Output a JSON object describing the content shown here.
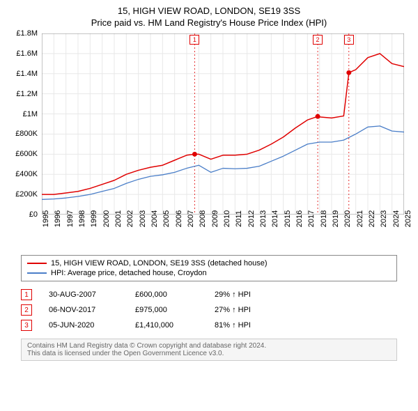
{
  "title": "15, HIGH VIEW ROAD, LONDON, SE19 3SS",
  "subtitle": "Price paid vs. HM Land Registry's House Price Index (HPI)",
  "chart": {
    "type": "line",
    "background_color": "#ffffff",
    "grid_color": "#e8e8e8",
    "axis_color": "#888888",
    "ylim": [
      0,
      1800000
    ],
    "ytick_step": 200000,
    "yticks": [
      "£0",
      "£200K",
      "£400K",
      "£600K",
      "£800K",
      "£1M",
      "£1.2M",
      "£1.4M",
      "£1.6M",
      "£1.8M"
    ],
    "xlim": [
      1995,
      2025
    ],
    "xticks": [
      "1995",
      "1996",
      "1997",
      "1998",
      "1999",
      "2000",
      "2001",
      "2002",
      "2003",
      "2004",
      "2005",
      "2006",
      "2007",
      "2008",
      "2009",
      "2010",
      "2011",
      "2012",
      "2013",
      "2014",
      "2015",
      "2016",
      "2017",
      "2018",
      "2019",
      "2020",
      "2021",
      "2022",
      "2023",
      "2024",
      "2025"
    ],
    "title_fontsize": 13,
    "label_fontsize": 11,
    "series": [
      {
        "name": "property",
        "label": "15, HIGH VIEW ROAD, LONDON, SE19 3SS (detached house)",
        "color": "#e00000",
        "line_width": 1.5,
        "data": [
          [
            1995,
            200000
          ],
          [
            1996,
            200000
          ],
          [
            1997,
            215000
          ],
          [
            1998,
            230000
          ],
          [
            1999,
            260000
          ],
          [
            2000,
            300000
          ],
          [
            2001,
            340000
          ],
          [
            2002,
            400000
          ],
          [
            2003,
            440000
          ],
          [
            2004,
            470000
          ],
          [
            2005,
            490000
          ],
          [
            2006,
            540000
          ],
          [
            2007,
            590000
          ],
          [
            2007.66,
            600000
          ],
          [
            2008,
            600000
          ],
          [
            2009,
            550000
          ],
          [
            2010,
            590000
          ],
          [
            2011,
            590000
          ],
          [
            2012,
            600000
          ],
          [
            2013,
            640000
          ],
          [
            2014,
            700000
          ],
          [
            2015,
            770000
          ],
          [
            2016,
            860000
          ],
          [
            2017,
            940000
          ],
          [
            2017.85,
            975000
          ],
          [
            2018,
            970000
          ],
          [
            2019,
            960000
          ],
          [
            2020,
            980000
          ],
          [
            2020.43,
            1410000
          ],
          [
            2021,
            1440000
          ],
          [
            2022,
            1560000
          ],
          [
            2023,
            1600000
          ],
          [
            2024,
            1500000
          ],
          [
            2025,
            1470000
          ]
        ]
      },
      {
        "name": "hpi",
        "label": "HPI: Average price, detached house, Croydon",
        "color": "#4a7ec8",
        "line_width": 1.3,
        "data": [
          [
            1995,
            150000
          ],
          [
            1996,
            155000
          ],
          [
            1997,
            165000
          ],
          [
            1998,
            180000
          ],
          [
            1999,
            200000
          ],
          [
            2000,
            230000
          ],
          [
            2001,
            260000
          ],
          [
            2002,
            310000
          ],
          [
            2003,
            350000
          ],
          [
            2004,
            380000
          ],
          [
            2005,
            395000
          ],
          [
            2006,
            420000
          ],
          [
            2007,
            460000
          ],
          [
            2008,
            490000
          ],
          [
            2009,
            420000
          ],
          [
            2010,
            460000
          ],
          [
            2011,
            455000
          ],
          [
            2012,
            460000
          ],
          [
            2013,
            480000
          ],
          [
            2014,
            530000
          ],
          [
            2015,
            580000
          ],
          [
            2016,
            640000
          ],
          [
            2017,
            700000
          ],
          [
            2018,
            720000
          ],
          [
            2019,
            720000
          ],
          [
            2020,
            740000
          ],
          [
            2021,
            800000
          ],
          [
            2022,
            870000
          ],
          [
            2023,
            880000
          ],
          [
            2024,
            830000
          ],
          [
            2025,
            820000
          ]
        ]
      }
    ],
    "event_markers": [
      {
        "n": "1",
        "x": 2007.66,
        "y": 600000,
        "dashed_color": "#e00000"
      },
      {
        "n": "2",
        "x": 2017.85,
        "y": 975000,
        "dashed_color": "#e00000"
      },
      {
        "n": "3",
        "x": 2020.43,
        "y": 1410000,
        "dashed_color": "#e00000"
      }
    ],
    "marker_dot_radius": 3.5
  },
  "legend": {
    "items": [
      {
        "color": "#e00000",
        "label": "15, HIGH VIEW ROAD, LONDON, SE19 3SS (detached house)"
      },
      {
        "color": "#4a7ec8",
        "label": "HPI: Average price, detached house, Croydon"
      }
    ]
  },
  "events": [
    {
      "n": "1",
      "date": "30-AUG-2007",
      "price": "£600,000",
      "pct": "29% ↑ HPI"
    },
    {
      "n": "2",
      "date": "06-NOV-2017",
      "price": "£975,000",
      "pct": "27% ↑ HPI"
    },
    {
      "n": "3",
      "date": "05-JUN-2020",
      "price": "£1,410,000",
      "pct": "81% ↑ HPI"
    }
  ],
  "footer": {
    "line1": "Contains HM Land Registry data © Crown copyright and database right 2024.",
    "line2": "This data is licensed under the Open Government Licence v3.0."
  }
}
